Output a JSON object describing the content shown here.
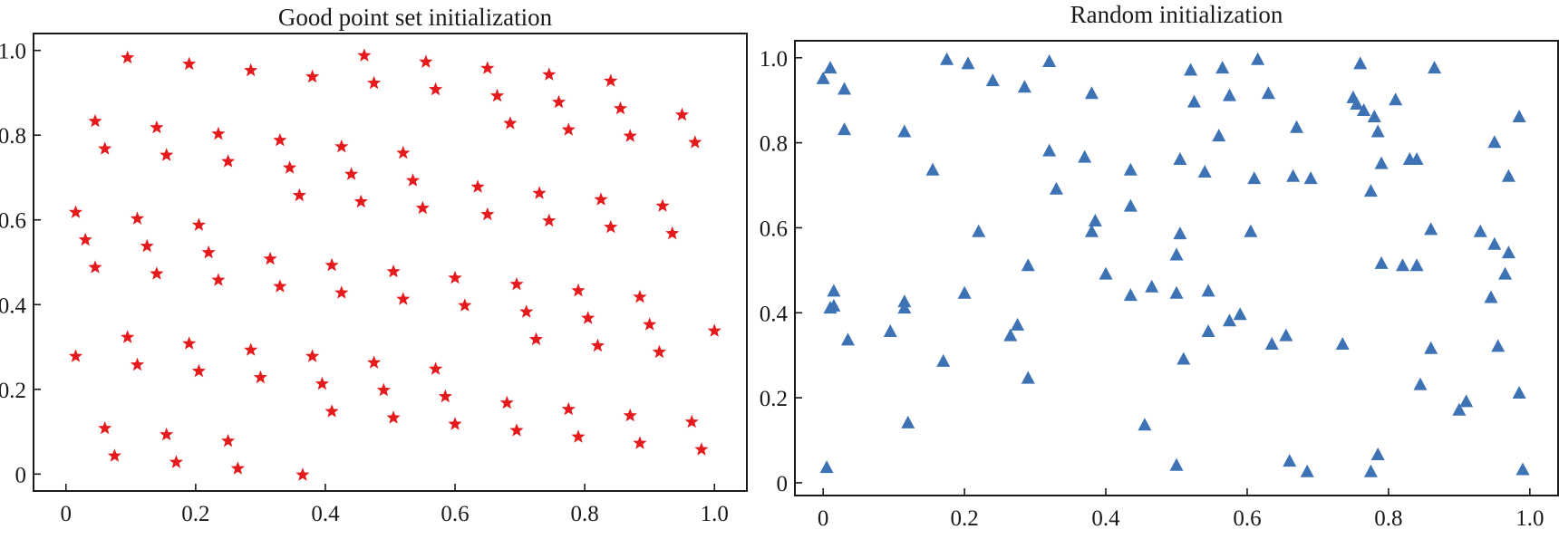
{
  "chart_data": [
    {
      "type": "scatter",
      "title": "Good point set initialization",
      "xlabel": "",
      "ylabel": "",
      "xlim": [
        -0.05,
        1.05
      ],
      "ylim": [
        -0.04,
        1.04
      ],
      "xticks": [
        0,
        0.2,
        0.4,
        0.6,
        0.8,
        1.0
      ],
      "xtick_labels": [
        "0",
        "0.2",
        "0.4",
        "0.6",
        "0.8",
        "1.0"
      ],
      "yticks": [
        0,
        0.2,
        0.4,
        0.6,
        0.8,
        1.0
      ],
      "ytick_labels": [
        "0",
        "0.2",
        "0.4",
        "0.6",
        "0.8",
        "1.0"
      ],
      "grid": false,
      "legend": false,
      "series": [
        {
          "marker": "star",
          "color": "#e41a1c",
          "points": [
            [
              0.095,
              0.985
            ],
            [
              0.19,
              0.97
            ],
            [
              0.285,
              0.955
            ],
            [
              0.38,
              0.94
            ],
            [
              0.46,
              0.99
            ],
            [
              0.475,
              0.925
            ],
            [
              0.555,
              0.975
            ],
            [
              0.57,
              0.91
            ],
            [
              0.65,
              0.96
            ],
            [
              0.665,
              0.895
            ],
            [
              0.685,
              0.83
            ],
            [
              0.745,
              0.945
            ],
            [
              0.76,
              0.88
            ],
            [
              0.775,
              0.815
            ],
            [
              0.84,
              0.93
            ],
            [
              0.855,
              0.865
            ],
            [
              0.87,
              0.8
            ],
            [
              0.95,
              0.85
            ],
            [
              0.97,
              0.785
            ],
            [
              0.045,
              0.835
            ],
            [
              0.06,
              0.77
            ],
            [
              0.14,
              0.82
            ],
            [
              0.155,
              0.755
            ],
            [
              0.235,
              0.805
            ],
            [
              0.25,
              0.74
            ],
            [
              0.33,
              0.79
            ],
            [
              0.345,
              0.725
            ],
            [
              0.36,
              0.66
            ],
            [
              0.425,
              0.775
            ],
            [
              0.44,
              0.71
            ],
            [
              0.455,
              0.645
            ],
            [
              0.52,
              0.76
            ],
            [
              0.535,
              0.695
            ],
            [
              0.55,
              0.63
            ],
            [
              0.635,
              0.68
            ],
            [
              0.65,
              0.615
            ],
            [
              0.73,
              0.665
            ],
            [
              0.745,
              0.6
            ],
            [
              0.825,
              0.65
            ],
            [
              0.84,
              0.585
            ],
            [
              0.92,
              0.635
            ],
            [
              0.935,
              0.57
            ],
            [
              0.015,
              0.62
            ],
            [
              0.03,
              0.555
            ],
            [
              0.045,
              0.49
            ],
            [
              0.11,
              0.605
            ],
            [
              0.125,
              0.54
            ],
            [
              0.14,
              0.475
            ],
            [
              0.205,
              0.59
            ],
            [
              0.22,
              0.525
            ],
            [
              0.235,
              0.46
            ],
            [
              0.315,
              0.51
            ],
            [
              0.33,
              0.445
            ],
            [
              0.41,
              0.495
            ],
            [
              0.425,
              0.43
            ],
            [
              0.505,
              0.48
            ],
            [
              0.52,
              0.415
            ],
            [
              0.6,
              0.465
            ],
            [
              0.615,
              0.4
            ],
            [
              0.695,
              0.45
            ],
            [
              0.71,
              0.385
            ],
            [
              0.725,
              0.32
            ],
            [
              0.79,
              0.435
            ],
            [
              0.805,
              0.37
            ],
            [
              0.82,
              0.305
            ],
            [
              0.885,
              0.42
            ],
            [
              0.9,
              0.355
            ],
            [
              0.915,
              0.29
            ],
            [
              1.0,
              0.34
            ],
            [
              0.015,
              0.28
            ],
            [
              0.095,
              0.325
            ],
            [
              0.11,
              0.26
            ],
            [
              0.19,
              0.31
            ],
            [
              0.205,
              0.245
            ],
            [
              0.285,
              0.295
            ],
            [
              0.3,
              0.23
            ],
            [
              0.38,
              0.28
            ],
            [
              0.395,
              0.215
            ],
            [
              0.41,
              0.15
            ],
            [
              0.475,
              0.265
            ],
            [
              0.49,
              0.2
            ],
            [
              0.505,
              0.135
            ],
            [
              0.57,
              0.25
            ],
            [
              0.585,
              0.185
            ],
            [
              0.6,
              0.12
            ],
            [
              0.68,
              0.17
            ],
            [
              0.695,
              0.105
            ],
            [
              0.775,
              0.155
            ],
            [
              0.79,
              0.09
            ],
            [
              0.87,
              0.14
            ],
            [
              0.885,
              0.075
            ],
            [
              0.965,
              0.125
            ],
            [
              0.98,
              0.06
            ],
            [
              0.06,
              0.11
            ],
            [
              0.075,
              0.045
            ],
            [
              0.155,
              0.095
            ],
            [
              0.17,
              0.03
            ],
            [
              0.25,
              0.08
            ],
            [
              0.265,
              0.015
            ],
            [
              0.365,
              0.0
            ]
          ]
        }
      ]
    },
    {
      "type": "scatter",
      "title": "Random initialization",
      "xlabel": "",
      "ylabel": "",
      "xlim": [
        -0.04,
        1.04
      ],
      "ylim": [
        -0.03,
        1.04
      ],
      "xticks": [
        0,
        0.2,
        0.4,
        0.6,
        0.8,
        1.0
      ],
      "xtick_labels": [
        "0",
        "0.2",
        "0.4",
        "0.6",
        "0.8",
        "1.0"
      ],
      "yticks": [
        0,
        0.2,
        0.4,
        0.6,
        0.8,
        1.0
      ],
      "ytick_labels": [
        "0",
        "0.2",
        "0.4",
        "0.6",
        "0.8",
        "1.0"
      ],
      "grid": false,
      "legend": false,
      "series": [
        {
          "marker": "triangle",
          "color": "#3d72b4",
          "points": [
            [
              0.0,
              0.95
            ],
            [
              0.01,
              0.975
            ],
            [
              0.03,
              0.925
            ],
            [
              0.03,
              0.83
            ],
            [
              0.175,
              0.995
            ],
            [
              0.205,
              0.985
            ],
            [
              0.24,
              0.945
            ],
            [
              0.285,
              0.93
            ],
            [
              0.32,
              0.99
            ],
            [
              0.38,
              0.915
            ],
            [
              0.52,
              0.97
            ],
            [
              0.565,
              0.975
            ],
            [
              0.615,
              0.995
            ],
            [
              0.76,
              0.985
            ],
            [
              0.865,
              0.975
            ],
            [
              0.115,
              0.825
            ],
            [
              0.155,
              0.735
            ],
            [
              0.32,
              0.78
            ],
            [
              0.37,
              0.765
            ],
            [
              0.33,
              0.69
            ],
            [
              0.435,
              0.735
            ],
            [
              0.525,
              0.895
            ],
            [
              0.575,
              0.91
            ],
            [
              0.63,
              0.915
            ],
            [
              0.56,
              0.815
            ],
            [
              0.505,
              0.76
            ],
            [
              0.54,
              0.73
            ],
            [
              0.67,
              0.835
            ],
            [
              0.665,
              0.72
            ],
            [
              0.69,
              0.715
            ],
            [
              0.61,
              0.715
            ],
            [
              0.75,
              0.905
            ],
            [
              0.755,
              0.89
            ],
            [
              0.765,
              0.875
            ],
            [
              0.81,
              0.9
            ],
            [
              0.78,
              0.86
            ],
            [
              0.785,
              0.825
            ],
            [
              0.79,
              0.75
            ],
            [
              0.775,
              0.685
            ],
            [
              0.83,
              0.76
            ],
            [
              0.84,
              0.76
            ],
            [
              0.95,
              0.8
            ],
            [
              0.985,
              0.86
            ],
            [
              0.97,
              0.72
            ],
            [
              0.22,
              0.59
            ],
            [
              0.29,
              0.51
            ],
            [
              0.38,
              0.59
            ],
            [
              0.385,
              0.615
            ],
            [
              0.435,
              0.65
            ],
            [
              0.4,
              0.49
            ],
            [
              0.505,
              0.585
            ],
            [
              0.5,
              0.535
            ],
            [
              0.605,
              0.59
            ],
            [
              0.79,
              0.515
            ],
            [
              0.82,
              0.51
            ],
            [
              0.84,
              0.51
            ],
            [
              0.86,
              0.595
            ],
            [
              0.93,
              0.59
            ],
            [
              0.95,
              0.56
            ],
            [
              0.97,
              0.54
            ],
            [
              0.965,
              0.49
            ],
            [
              0.945,
              0.435
            ],
            [
              0.015,
              0.45
            ],
            [
              0.01,
              0.41
            ],
            [
              0.015,
              0.415
            ],
            [
              0.035,
              0.335
            ],
            [
              0.115,
              0.425
            ],
            [
              0.115,
              0.41
            ],
            [
              0.095,
              0.355
            ],
            [
              0.2,
              0.445
            ],
            [
              0.265,
              0.345
            ],
            [
              0.275,
              0.37
            ],
            [
              0.435,
              0.44
            ],
            [
              0.465,
              0.46
            ],
            [
              0.5,
              0.445
            ],
            [
              0.545,
              0.45
            ],
            [
              0.545,
              0.355
            ],
            [
              0.575,
              0.38
            ],
            [
              0.59,
              0.395
            ],
            [
              0.635,
              0.325
            ],
            [
              0.655,
              0.345
            ],
            [
              0.735,
              0.325
            ],
            [
              0.86,
              0.315
            ],
            [
              0.955,
              0.32
            ],
            [
              0.17,
              0.285
            ],
            [
              0.29,
              0.245
            ],
            [
              0.51,
              0.29
            ],
            [
              0.845,
              0.23
            ],
            [
              0.91,
              0.19
            ],
            [
              0.9,
              0.17
            ],
            [
              0.985,
              0.21
            ],
            [
              0.12,
              0.14
            ],
            [
              0.455,
              0.135
            ],
            [
              0.5,
              0.04
            ],
            [
              0.66,
              0.05
            ],
            [
              0.685,
              0.025
            ],
            [
              0.785,
              0.065
            ],
            [
              0.775,
              0.025
            ],
            [
              0.99,
              0.03
            ],
            [
              0.005,
              0.035
            ]
          ]
        }
      ]
    }
  ]
}
